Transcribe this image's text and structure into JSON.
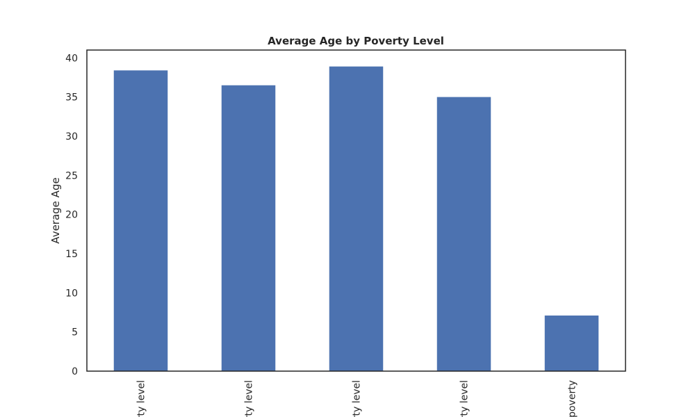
{
  "chart_data": {
    "type": "bar",
    "title": "Average Age by Poverty Level",
    "xlabel": "",
    "ylabel": "Average Age",
    "categories": [
      "rty level",
      "rty level",
      "rty level",
      "rty level",
      "poverty"
    ],
    "values": [
      38.4,
      36.5,
      38.9,
      35.0,
      7.1
    ],
    "ylim": [
      0,
      41
    ],
    "yticks": [
      0,
      5,
      10,
      15,
      20,
      25,
      30,
      35,
      40
    ],
    "grid": false,
    "colors": {
      "bar": "#4c72b0",
      "axis": "#262626",
      "text": "#262626"
    }
  }
}
